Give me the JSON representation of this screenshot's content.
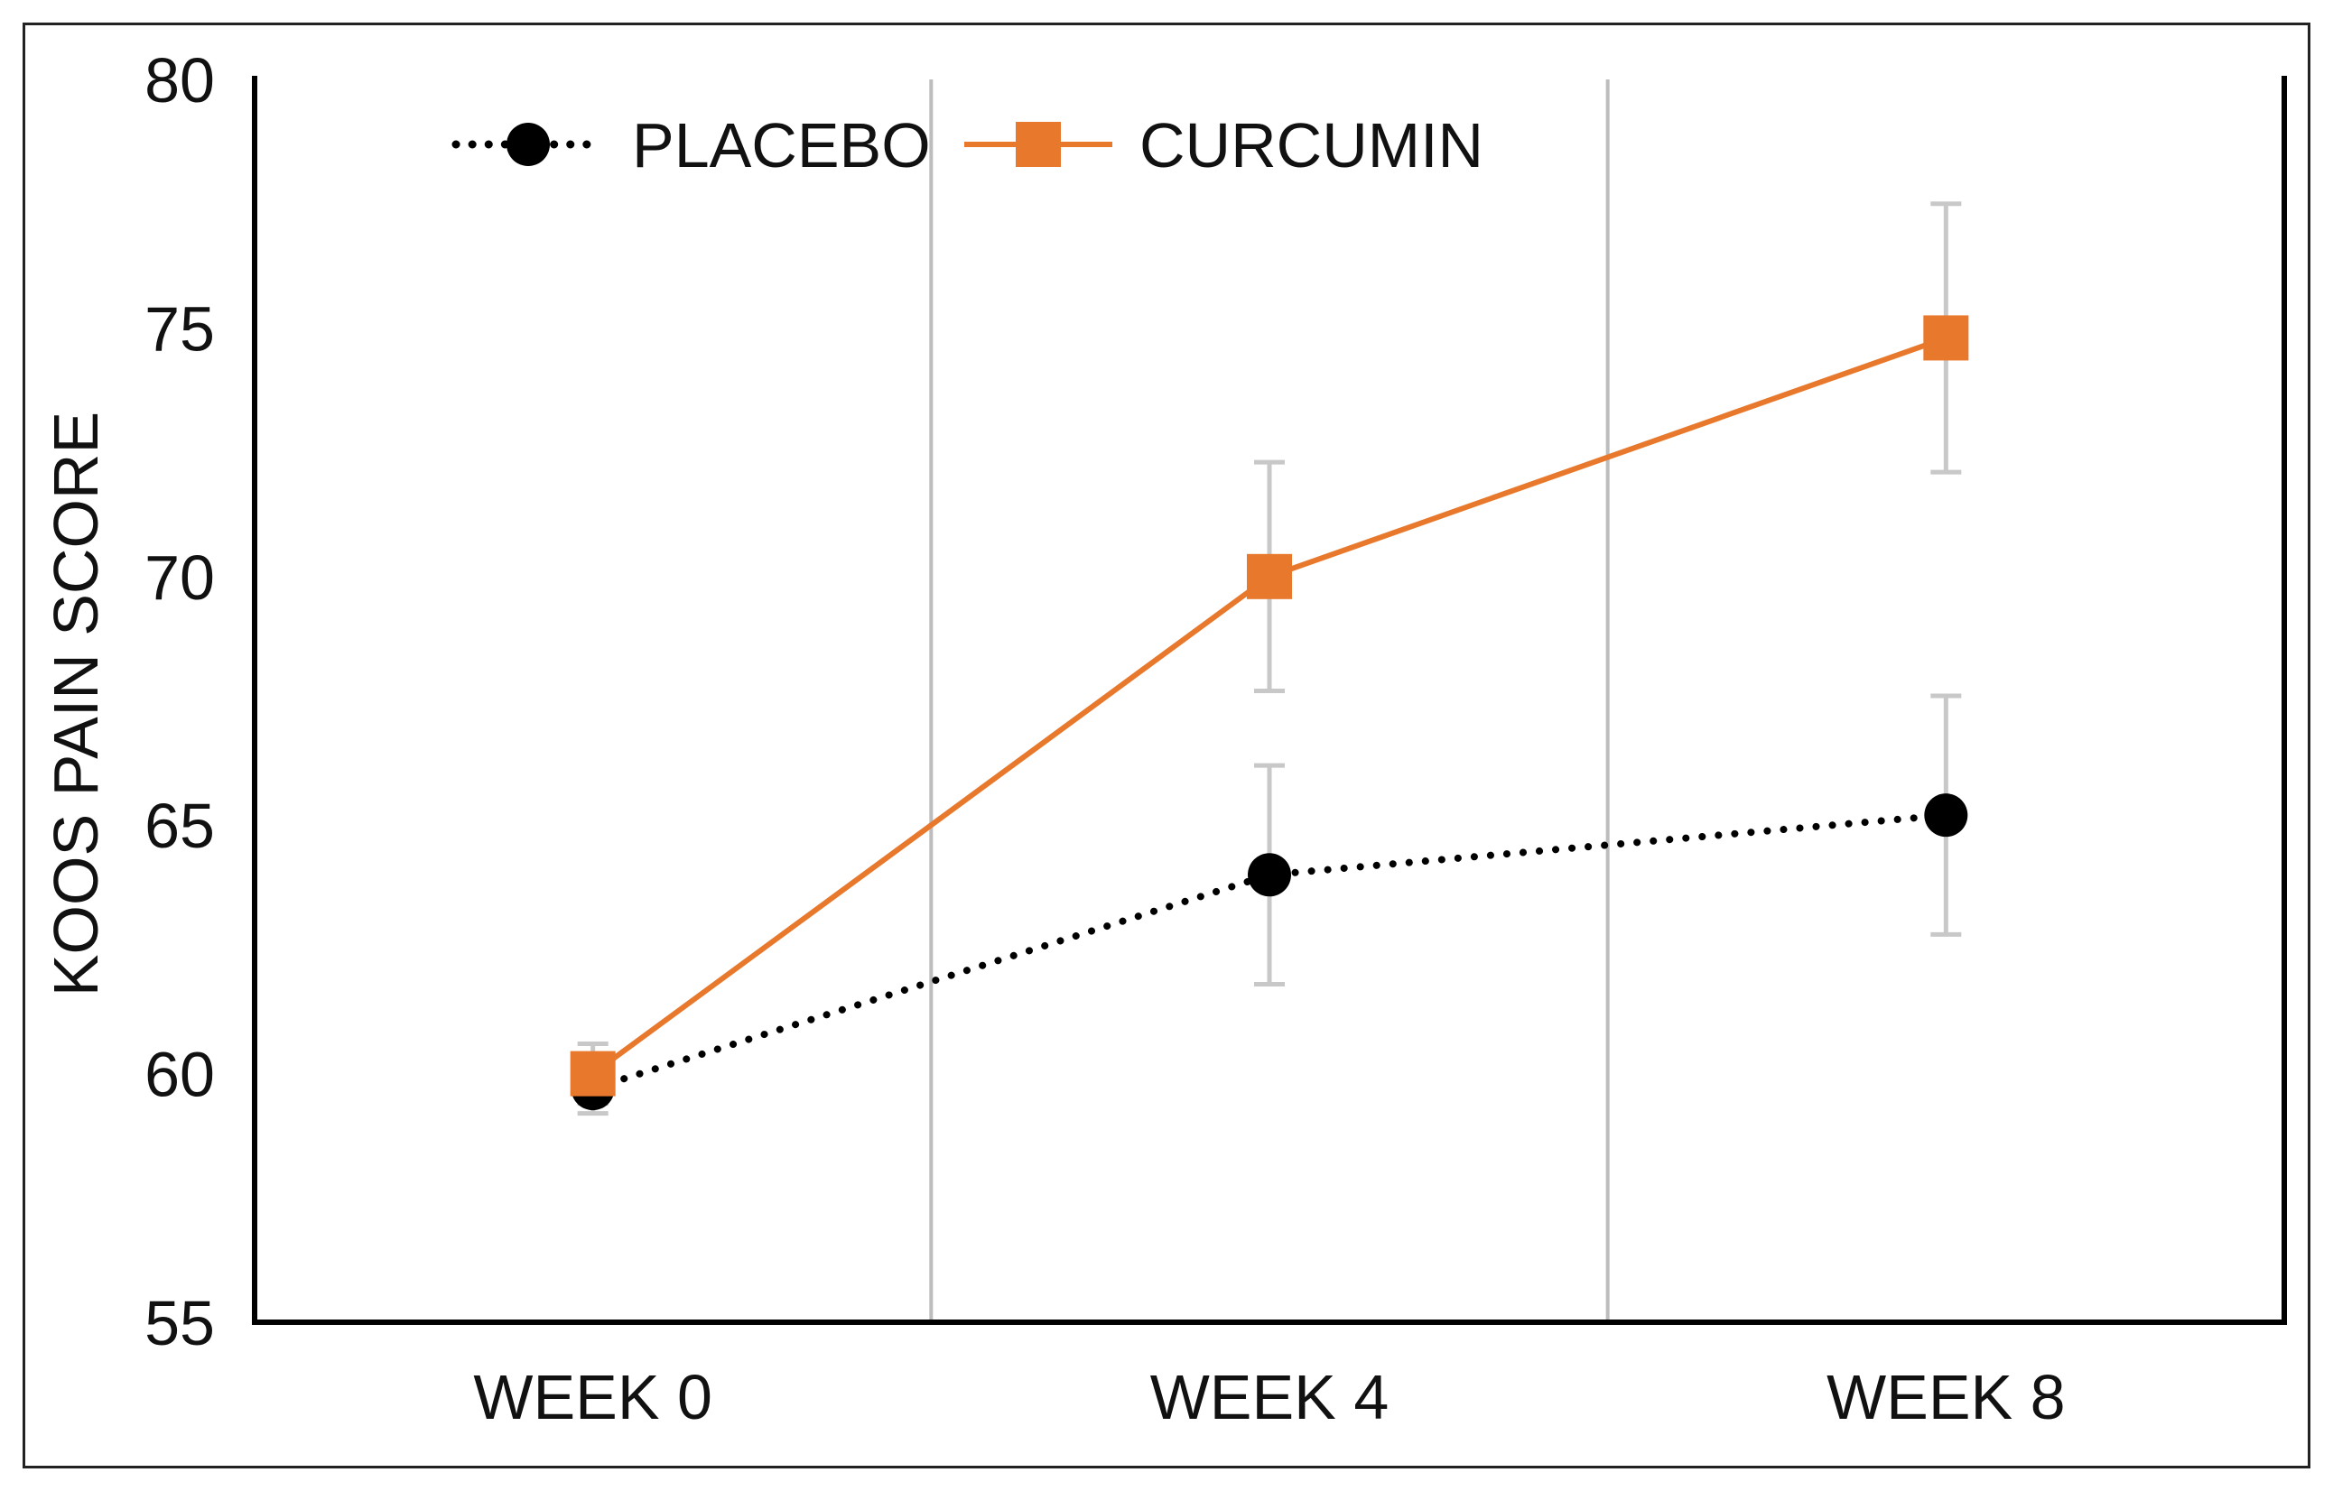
{
  "chart_data": {
    "type": "line",
    "title": "",
    "xlabel": "",
    "ylabel": "KOOS PAIN SCORE",
    "ylim": [
      55,
      80
    ],
    "yticks": [
      55,
      60,
      65,
      70,
      75,
      80
    ],
    "categories": [
      "WEEK 0",
      "WEEK 4",
      "WEEK 8"
    ],
    "grid": "vertical separators between categories",
    "legend_position": "top-left",
    "series": [
      {
        "name": "PLACEBO",
        "color": "#000000",
        "line_style": "dotted",
        "marker": "circle",
        "values": [
          59.7,
          64.0,
          65.2
        ],
        "error": [
          0.5,
          2.2,
          2.4
        ]
      },
      {
        "name": "CURCUMIN",
        "color": "#E8782B",
        "line_style": "solid",
        "marker": "square",
        "values": [
          60.0,
          70.0,
          74.8
        ],
        "error": [
          0.6,
          2.3,
          2.7
        ]
      }
    ]
  }
}
